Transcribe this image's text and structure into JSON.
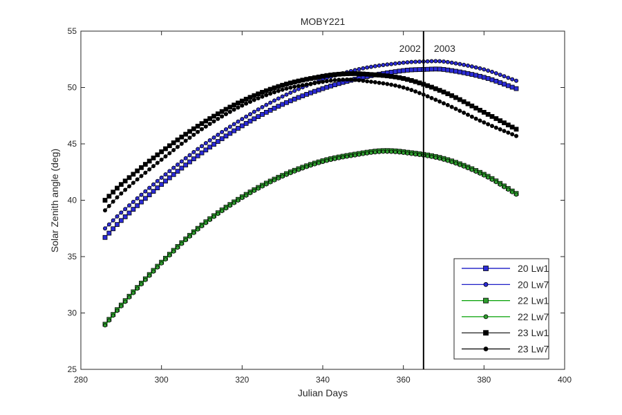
{
  "chart_data": {
    "type": "line",
    "title": "MOBY221",
    "xlabel": "Julian Days",
    "ylabel": "Solar Zenith angle (deg)",
    "xlim": [
      280,
      400
    ],
    "ylim": [
      25,
      55
    ],
    "xticks": [
      280,
      300,
      320,
      340,
      360,
      380,
      400
    ],
    "yticks": [
      25,
      30,
      35,
      40,
      45,
      50,
      55
    ],
    "grid": false,
    "legend_position": "bottom-right",
    "vline": {
      "x": 365,
      "label_left": "2002",
      "label_right": "2003"
    },
    "x_range": [
      286,
      388
    ],
    "series": [
      {
        "name": "20 Lw1",
        "color": "#0000bf",
        "marker": "square",
        "marker_fill": "#2b2bd6",
        "points": [
          [
            286,
            36.7
          ],
          [
            290,
            38.2
          ],
          [
            300,
            41.4
          ],
          [
            310,
            44.2
          ],
          [
            320,
            46.6
          ],
          [
            330,
            48.5
          ],
          [
            340,
            49.9
          ],
          [
            350,
            50.9
          ],
          [
            360,
            51.5
          ],
          [
            365,
            51.6
          ],
          [
            370,
            51.6
          ],
          [
            380,
            50.9
          ],
          [
            388,
            49.9
          ]
        ]
      },
      {
        "name": "20 Lw7",
        "color": "#0000bf",
        "marker": "circle",
        "marker_fill": "#2b2bd6",
        "points": [
          [
            286,
            37.5
          ],
          [
            290,
            38.9
          ],
          [
            300,
            42.0
          ],
          [
            310,
            44.8
          ],
          [
            320,
            47.2
          ],
          [
            330,
            49.2
          ],
          [
            340,
            50.7
          ],
          [
            350,
            51.7
          ],
          [
            360,
            52.2
          ],
          [
            365,
            52.3
          ],
          [
            370,
            52.3
          ],
          [
            380,
            51.6
          ],
          [
            388,
            50.6
          ]
        ]
      },
      {
        "name": "22 Lw1",
        "color": "#00a000",
        "marker": "square",
        "marker_fill": "#2e9e2e",
        "points": [
          [
            286,
            29.0
          ],
          [
            290,
            30.7
          ],
          [
            300,
            34.5
          ],
          [
            310,
            37.8
          ],
          [
            320,
            40.3
          ],
          [
            330,
            42.2
          ],
          [
            340,
            43.5
          ],
          [
            350,
            44.2
          ],
          [
            355,
            44.4
          ],
          [
            360,
            44.3
          ],
          [
            370,
            43.7
          ],
          [
            380,
            42.3
          ],
          [
            388,
            40.6
          ]
        ]
      },
      {
        "name": "22 Lw7",
        "color": "#00a000",
        "marker": "circle",
        "marker_fill": "#2e9e2e",
        "points": [
          [
            286,
            28.9
          ],
          [
            290,
            30.6
          ],
          [
            300,
            34.4
          ],
          [
            310,
            37.7
          ],
          [
            320,
            40.2
          ],
          [
            330,
            42.1
          ],
          [
            340,
            43.4
          ],
          [
            350,
            44.1
          ],
          [
            355,
            44.3
          ],
          [
            360,
            44.2
          ],
          [
            370,
            43.6
          ],
          [
            380,
            42.2
          ],
          [
            388,
            40.5
          ]
        ]
      },
      {
        "name": "23 Lw1",
        "color": "#000000",
        "marker": "square",
        "marker_fill": "#000000",
        "points": [
          [
            286,
            40.0
          ],
          [
            290,
            41.4
          ],
          [
            300,
            44.3
          ],
          [
            310,
            46.8
          ],
          [
            320,
            48.8
          ],
          [
            330,
            50.2
          ],
          [
            340,
            51.0
          ],
          [
            345,
            51.2
          ],
          [
            350,
            51.2
          ],
          [
            360,
            50.8
          ],
          [
            370,
            49.6
          ],
          [
            380,
            47.8
          ],
          [
            388,
            46.3
          ]
        ]
      },
      {
        "name": "23 Lw7",
        "color": "#000000",
        "marker": "circle",
        "marker_fill": "#000000",
        "points": [
          [
            286,
            39.1
          ],
          [
            290,
            40.6
          ],
          [
            300,
            43.6
          ],
          [
            310,
            46.3
          ],
          [
            320,
            48.4
          ],
          [
            330,
            49.8
          ],
          [
            340,
            50.5
          ],
          [
            345,
            50.7
          ],
          [
            350,
            50.6
          ],
          [
            360,
            50.0
          ],
          [
            370,
            48.6
          ],
          [
            380,
            46.9
          ],
          [
            388,
            45.7
          ]
        ]
      }
    ]
  }
}
